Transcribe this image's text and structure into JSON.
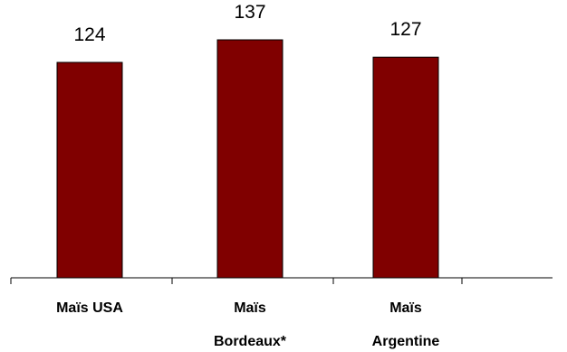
{
  "chart_data": {
    "type": "bar",
    "categories": [
      [
        "Maïs USA"
      ],
      [
        "Maïs",
        "Bordeaux*"
      ],
      [
        "Maïs",
        "Argentine"
      ]
    ],
    "values": [
      124,
      137,
      127
    ],
    "value_labels": [
      "124",
      "137",
      "127"
    ],
    "bar_color": "#800000",
    "bar_stroke": "#000000",
    "ylim": [
      0,
      137
    ],
    "grid": false,
    "legend": "none"
  }
}
